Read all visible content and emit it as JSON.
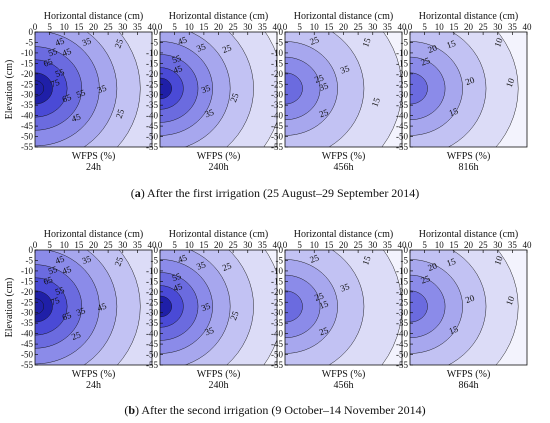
{
  "colors": {
    "levels": [
      "#f3f3fd",
      "#dcdcf7",
      "#c2c2f3",
      "#a7a7ee",
      "#8b8be9",
      "#6b6bdf",
      "#4a4ad6",
      "#1f1fa8"
    ],
    "line": "#111111"
  },
  "chart_data": [
    {
      "type": "heatmap",
      "group": "a",
      "title": "",
      "x_axis_label": "Horizontal distance (cm)",
      "ylabel": "Elevation (cm)",
      "panel_label": "WFPS (%)",
      "time": "24h",
      "xlim": [
        0,
        40
      ],
      "ylim": [
        -55,
        0
      ],
      "source": {
        "x": 0,
        "y": -27
      },
      "radii_cm": [
        46,
        36,
        28,
        22,
        16,
        11,
        6,
        3
      ],
      "contour_labels": [
        "45",
        "35",
        "25",
        "55",
        "45",
        "65",
        "55",
        "75",
        "65",
        "55",
        "35",
        "45",
        "25"
      ]
    },
    {
      "type": "heatmap",
      "group": "a",
      "title": "",
      "x_axis_label": "Horizontal distance (cm)",
      "panel_label": "WFPS (%)",
      "time": "240h",
      "xlim": [
        0,
        40
      ],
      "ylim": [
        -55,
        0
      ],
      "source": {
        "x": 0,
        "y": -27
      },
      "radii_cm": [
        42,
        32,
        24,
        18,
        13,
        8,
        4
      ],
      "contour_labels": [
        "45",
        "35",
        "25",
        "55",
        "45",
        "35",
        "25",
        "35"
      ]
    },
    {
      "type": "heatmap",
      "group": "a",
      "title": "",
      "x_axis_label": "Horizontal distance (cm)",
      "panel_label": "WFPS (%)",
      "time": "456h",
      "xlim": [
        0,
        40
      ],
      "ylim": [
        -55,
        0
      ],
      "source": {
        "x": 0,
        "y": -27
      },
      "radii_cm": [
        40,
        27,
        18,
        12,
        6
      ],
      "contour_labels": [
        "25",
        "15",
        "35",
        "25",
        "35",
        "25",
        "15"
      ]
    },
    {
      "type": "heatmap",
      "group": "a",
      "title": "",
      "x_axis_label": "Horizontal distance (cm)",
      "panel_label": "WFPS (%)",
      "time": "816h",
      "xlim": [
        0,
        40
      ],
      "ylim": [
        -55,
        0
      ],
      "source": {
        "x": 0,
        "y": -27
      },
      "radii_cm": [
        37,
        26,
        18,
        12,
        6
      ],
      "contour_labels": [
        "20",
        "15",
        "10",
        "25",
        "20",
        "10",
        "15"
      ]
    },
    {
      "type": "heatmap",
      "group": "b",
      "title": "",
      "x_axis_label": "Horizontal distance (cm)",
      "ylabel": "Elevation (cm)",
      "panel_label": "WFPS (%)",
      "time": "24h",
      "xlim": [
        0,
        40
      ],
      "ylim": [
        -55,
        0
      ],
      "source": {
        "x": 0,
        "y": -27
      },
      "radii_cm": [
        46,
        36,
        28,
        22,
        16,
        11,
        6,
        3
      ],
      "contour_labels": [
        "45",
        "35",
        "25",
        "55",
        "45",
        "65",
        "55",
        "75",
        "65",
        "35",
        "45",
        "25"
      ]
    },
    {
      "type": "heatmap",
      "group": "b",
      "title": "",
      "x_axis_label": "Horizontal distance (cm)",
      "panel_label": "WFPS (%)",
      "time": "240h",
      "xlim": [
        0,
        40
      ],
      "ylim": [
        -55,
        0
      ],
      "source": {
        "x": 0,
        "y": -27
      },
      "radii_cm": [
        42,
        32,
        24,
        18,
        13,
        8,
        4
      ],
      "contour_labels": [
        "45",
        "35",
        "25",
        "55",
        "45",
        "35",
        "25",
        "35"
      ]
    },
    {
      "type": "heatmap",
      "group": "b",
      "title": "",
      "x_axis_label": "Horizontal distance (cm)",
      "panel_label": "WFPS (%)",
      "time": "456h",
      "xlim": [
        0,
        40
      ],
      "ylim": [
        -55,
        0
      ],
      "source": {
        "x": 0,
        "y": -27
      },
      "radii_cm": [
        40,
        27,
        18,
        12,
        6
      ],
      "contour_labels": [
        "25",
        "15",
        "35",
        "25",
        "15",
        "25"
      ]
    },
    {
      "type": "heatmap",
      "group": "b",
      "title": "",
      "x_axis_label": "Horizontal distance (cm)",
      "panel_label": "WFPS (%)",
      "time": "864h",
      "xlim": [
        0,
        40
      ],
      "ylim": [
        -55,
        0
      ],
      "source": {
        "x": 0,
        "y": -27
      },
      "radii_cm": [
        37,
        26,
        18,
        12,
        6
      ],
      "contour_labels": [
        "20",
        "15",
        "10",
        "25",
        "20",
        "10",
        "15"
      ]
    }
  ],
  "axes": {
    "x_ticks": [
      "0",
      "5",
      "10",
      "15",
      "20",
      "25",
      "30",
      "35",
      "40"
    ],
    "y_ticks": [
      "0",
      "-5",
      "-10",
      "-15",
      "-20",
      "-25",
      "-30",
      "-35",
      "-40",
      "-45",
      "-50",
      "-55"
    ]
  },
  "captions": {
    "a": {
      "letter": "a",
      "text": " After the first irrigation (25 August–29 September 2014)"
    },
    "b": {
      "letter": "b",
      "text": " After the second irrigation (9 October–14 November 2014)"
    }
  }
}
